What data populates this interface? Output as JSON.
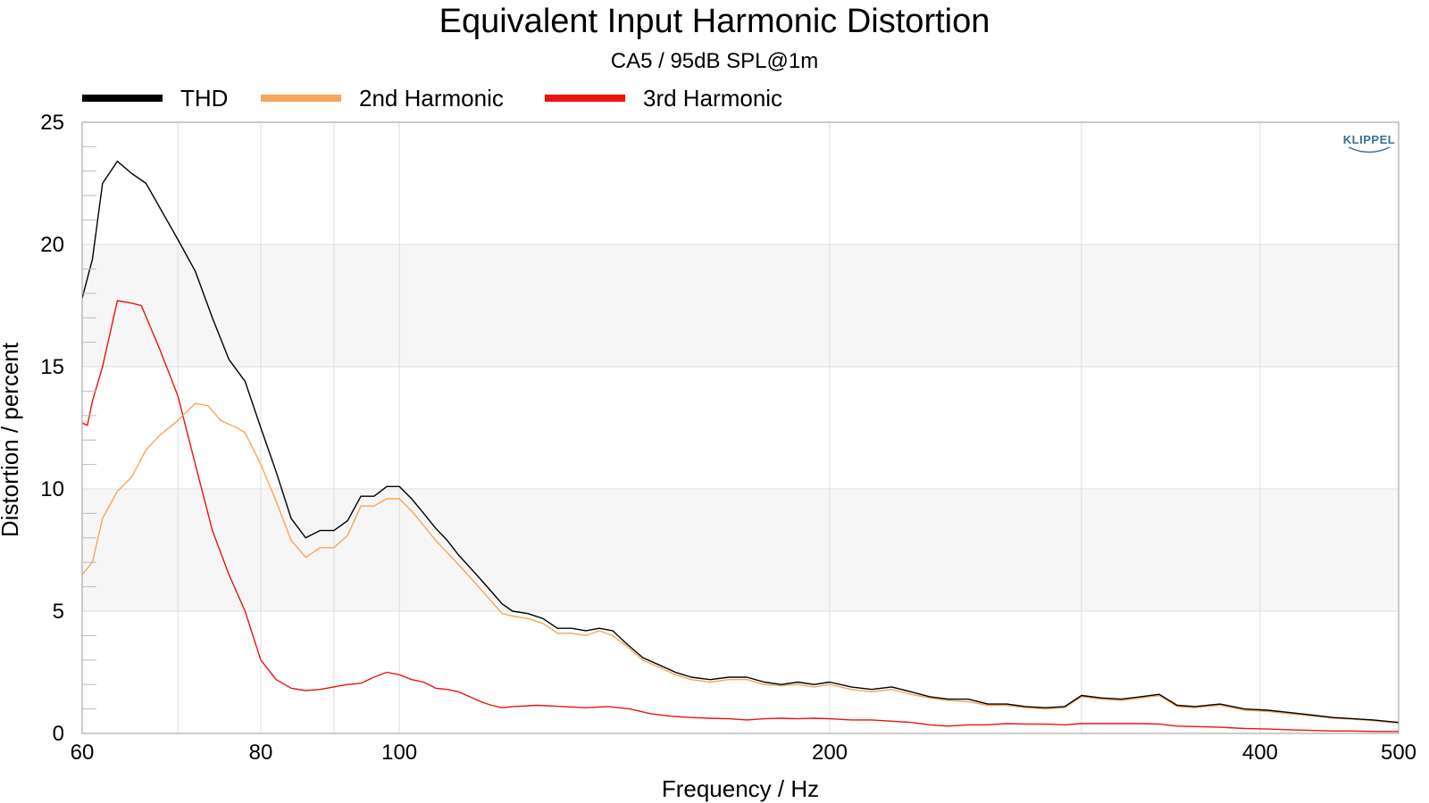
{
  "chart_data": {
    "type": "line",
    "title": "Equivalent Input Harmonic Distortion",
    "subtitle": "CA5 / 95dB SPL@1m",
    "xlabel": "Frequency / Hz",
    "ylabel": "Distortion / percent",
    "x_scale": "log",
    "xlim": [
      60,
      500
    ],
    "ylim": [
      0,
      25
    ],
    "x_ticks": [
      60,
      80,
      100,
      200,
      400,
      500
    ],
    "y_ticks": [
      0,
      5,
      10,
      15,
      20,
      25
    ],
    "grid": true,
    "legend_position": "top-left",
    "logo": "KLIPPEL",
    "series": [
      {
        "name": "THD",
        "color": "#000000",
        "points": [
          [
            60,
            17.8
          ],
          [
            61,
            19.4
          ],
          [
            62,
            22.5
          ],
          [
            63.5,
            23.4
          ],
          [
            65,
            22.9
          ],
          [
            66.5,
            22.5
          ],
          [
            68,
            21.5
          ],
          [
            70,
            20.2
          ],
          [
            72,
            18.9
          ],
          [
            74,
            17.0
          ],
          [
            76,
            15.3
          ],
          [
            78,
            14.4
          ],
          [
            80,
            12.5
          ],
          [
            82,
            10.7
          ],
          [
            84,
            8.8
          ],
          [
            86,
            8.0
          ],
          [
            88,
            8.3
          ],
          [
            90,
            8.3
          ],
          [
            92,
            8.7
          ],
          [
            94,
            9.7
          ],
          [
            96,
            9.7
          ],
          [
            98,
            10.1
          ],
          [
            100,
            10.1
          ],
          [
            102,
            9.6
          ],
          [
            104,
            9.0
          ],
          [
            106,
            8.4
          ],
          [
            108,
            7.9
          ],
          [
            110,
            7.3
          ],
          [
            112,
            6.8
          ],
          [
            114,
            6.3
          ],
          [
            116,
            5.8
          ],
          [
            118,
            5.3
          ],
          [
            120,
            5.0
          ],
          [
            123,
            4.9
          ],
          [
            126,
            4.7
          ],
          [
            129,
            4.3
          ],
          [
            132,
            4.3
          ],
          [
            135,
            4.2
          ],
          [
            138,
            4.3
          ],
          [
            141,
            4.2
          ],
          [
            144,
            3.7
          ],
          [
            148,
            3.1
          ],
          [
            152,
            2.8
          ],
          [
            156,
            2.5
          ],
          [
            160,
            2.3
          ],
          [
            165,
            2.2
          ],
          [
            170,
            2.3
          ],
          [
            175,
            2.3
          ],
          [
            180,
            2.1
          ],
          [
            185,
            2.0
          ],
          [
            190,
            2.1
          ],
          [
            195,
            2.0
          ],
          [
            200,
            2.1
          ],
          [
            207,
            1.9
          ],
          [
            214,
            1.8
          ],
          [
            221,
            1.9
          ],
          [
            228,
            1.7
          ],
          [
            235,
            1.5
          ],
          [
            242,
            1.4
          ],
          [
            250,
            1.4
          ],
          [
            258,
            1.2
          ],
          [
            266,
            1.2
          ],
          [
            274,
            1.1
          ],
          [
            283,
            1.05
          ],
          [
            292,
            1.1
          ],
          [
            300,
            1.55
          ],
          [
            310,
            1.45
          ],
          [
            320,
            1.4
          ],
          [
            330,
            1.5
          ],
          [
            340,
            1.6
          ],
          [
            350,
            1.15
          ],
          [
            360,
            1.1
          ],
          [
            375,
            1.2
          ],
          [
            390,
            1.0
          ],
          [
            405,
            0.95
          ],
          [
            420,
            0.85
          ],
          [
            435,
            0.75
          ],
          [
            450,
            0.65
          ],
          [
            465,
            0.6
          ],
          [
            480,
            0.55
          ],
          [
            500,
            0.45
          ]
        ]
      },
      {
        "name": "2nd Harmonic",
        "color": "#f7a55a",
        "points": [
          [
            60,
            6.5
          ],
          [
            61,
            7.0
          ],
          [
            62,
            8.8
          ],
          [
            63.5,
            9.9
          ],
          [
            65,
            10.5
          ],
          [
            66.5,
            11.6
          ],
          [
            68,
            12.2
          ],
          [
            70,
            12.8
          ],
          [
            72,
            13.5
          ],
          [
            73.5,
            13.4
          ],
          [
            75,
            12.8
          ],
          [
            77,
            12.5
          ],
          [
            78,
            12.3
          ],
          [
            80,
            11.0
          ],
          [
            82,
            9.5
          ],
          [
            84,
            7.9
          ],
          [
            86,
            7.2
          ],
          [
            88,
            7.6
          ],
          [
            90,
            7.6
          ],
          [
            92,
            8.1
          ],
          [
            94,
            9.3
          ],
          [
            96,
            9.3
          ],
          [
            98,
            9.6
          ],
          [
            100,
            9.6
          ],
          [
            102,
            9.1
          ],
          [
            104,
            8.5
          ],
          [
            106,
            7.9
          ],
          [
            108,
            7.4
          ],
          [
            110,
            6.9
          ],
          [
            112,
            6.4
          ],
          [
            114,
            5.9
          ],
          [
            116,
            5.4
          ],
          [
            118,
            4.9
          ],
          [
            120,
            4.8
          ],
          [
            123,
            4.7
          ],
          [
            126,
            4.5
          ],
          [
            129,
            4.1
          ],
          [
            132,
            4.1
          ],
          [
            135,
            4.0
          ],
          [
            138,
            4.2
          ],
          [
            141,
            4.0
          ],
          [
            144,
            3.6
          ],
          [
            148,
            3.0
          ],
          [
            152,
            2.7
          ],
          [
            156,
            2.4
          ],
          [
            160,
            2.2
          ],
          [
            165,
            2.1
          ],
          [
            170,
            2.2
          ],
          [
            175,
            2.2
          ],
          [
            180,
            2.0
          ],
          [
            185,
            1.95
          ],
          [
            190,
            2.0
          ],
          [
            195,
            1.9
          ],
          [
            200,
            2.0
          ],
          [
            207,
            1.8
          ],
          [
            214,
            1.7
          ],
          [
            221,
            1.8
          ],
          [
            228,
            1.6
          ],
          [
            235,
            1.45
          ],
          [
            242,
            1.35
          ],
          [
            250,
            1.3
          ],
          [
            258,
            1.15
          ],
          [
            266,
            1.15
          ],
          [
            274,
            1.05
          ],
          [
            283,
            1.0
          ],
          [
            292,
            1.05
          ],
          [
            300,
            1.5
          ],
          [
            310,
            1.4
          ],
          [
            320,
            1.35
          ],
          [
            330,
            1.45
          ],
          [
            340,
            1.55
          ],
          [
            350,
            1.1
          ],
          [
            360,
            1.05
          ],
          [
            375,
            1.15
          ],
          [
            390,
            0.95
          ],
          [
            405,
            0.9
          ],
          [
            420,
            0.8
          ],
          [
            435,
            0.72
          ],
          [
            450,
            0.62
          ],
          [
            465,
            0.58
          ],
          [
            480,
            0.52
          ],
          [
            500,
            0.42
          ]
        ]
      },
      {
        "name": "3rd Harmonic",
        "color": "#ee1111",
        "points": [
          [
            60,
            12.7
          ],
          [
            60.5,
            12.6
          ],
          [
            61,
            13.6
          ],
          [
            62,
            15.0
          ],
          [
            63.5,
            17.7
          ],
          [
            65,
            17.6
          ],
          [
            66,
            17.5
          ],
          [
            68,
            15.7
          ],
          [
            70,
            13.8
          ],
          [
            72,
            11.0
          ],
          [
            74,
            8.3
          ],
          [
            76,
            6.5
          ],
          [
            78,
            5.0
          ],
          [
            80,
            3.0
          ],
          [
            82,
            2.2
          ],
          [
            84,
            1.85
          ],
          [
            86,
            1.75
          ],
          [
            88,
            1.8
          ],
          [
            90,
            1.9
          ],
          [
            92,
            2.0
          ],
          [
            94,
            2.05
          ],
          [
            96,
            2.3
          ],
          [
            98,
            2.5
          ],
          [
            100,
            2.4
          ],
          [
            102,
            2.2
          ],
          [
            104,
            2.1
          ],
          [
            106,
            1.85
          ],
          [
            108,
            1.8
          ],
          [
            110,
            1.7
          ],
          [
            112,
            1.5
          ],
          [
            114,
            1.3
          ],
          [
            116,
            1.15
          ],
          [
            118,
            1.05
          ],
          [
            120,
            1.1
          ],
          [
            125,
            1.15
          ],
          [
            130,
            1.1
          ],
          [
            135,
            1.05
          ],
          [
            140,
            1.1
          ],
          [
            145,
            1.0
          ],
          [
            150,
            0.8
          ],
          [
            155,
            0.7
          ],
          [
            160,
            0.65
          ],
          [
            165,
            0.62
          ],
          [
            170,
            0.6
          ],
          [
            175,
            0.55
          ],
          [
            180,
            0.6
          ],
          [
            185,
            0.62
          ],
          [
            190,
            0.6
          ],
          [
            195,
            0.62
          ],
          [
            200,
            0.6
          ],
          [
            207,
            0.55
          ],
          [
            214,
            0.55
          ],
          [
            221,
            0.5
          ],
          [
            228,
            0.45
          ],
          [
            235,
            0.35
          ],
          [
            242,
            0.3
          ],
          [
            250,
            0.35
          ],
          [
            258,
            0.35
          ],
          [
            266,
            0.4
          ],
          [
            274,
            0.38
          ],
          [
            283,
            0.38
          ],
          [
            292,
            0.35
          ],
          [
            300,
            0.4
          ],
          [
            310,
            0.4
          ],
          [
            320,
            0.4
          ],
          [
            330,
            0.4
          ],
          [
            340,
            0.38
          ],
          [
            350,
            0.3
          ],
          [
            360,
            0.28
          ],
          [
            375,
            0.25
          ],
          [
            390,
            0.2
          ],
          [
            405,
            0.18
          ],
          [
            420,
            0.15
          ],
          [
            435,
            0.12
          ],
          [
            450,
            0.1
          ],
          [
            465,
            0.1
          ],
          [
            480,
            0.08
          ],
          [
            500,
            0.08
          ]
        ]
      }
    ]
  }
}
